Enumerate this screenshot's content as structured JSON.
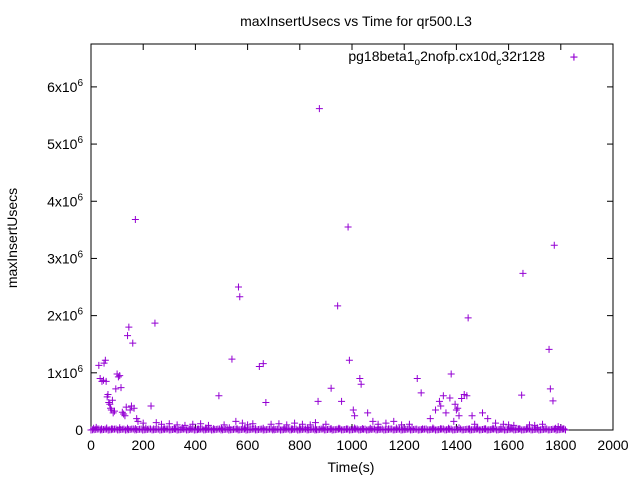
{
  "chart_data": {
    "type": "scatter",
    "title": "maxInsertUsecs vs Time for qr500.L3",
    "xlabel": "Time(s)",
    "ylabel": "maxInsertUsecs",
    "xlim": [
      0,
      2000
    ],
    "ylim": [
      0,
      6750000
    ],
    "grid": false,
    "legend_position": "top-right",
    "x_ticks": [
      {
        "value": 0,
        "label": "0"
      },
      {
        "value": 200,
        "label": "200"
      },
      {
        "value": 400,
        "label": "400"
      },
      {
        "value": 600,
        "label": "600"
      },
      {
        "value": 800,
        "label": "800"
      },
      {
        "value": 1000,
        "label": "1000"
      },
      {
        "value": 1200,
        "label": "1200"
      },
      {
        "value": 1400,
        "label": "1400"
      },
      {
        "value": 1600,
        "label": "1600"
      },
      {
        "value": 1800,
        "label": "1800"
      },
      {
        "value": 2000,
        "label": "2000"
      }
    ],
    "y_ticks": [
      {
        "value": 0,
        "base": "0",
        "exp": ""
      },
      {
        "value": 1000000,
        "base": "1x10",
        "exp": "6"
      },
      {
        "value": 2000000,
        "base": "2x10",
        "exp": "6"
      },
      {
        "value": 3000000,
        "base": "3x10",
        "exp": "6"
      },
      {
        "value": 4000000,
        "base": "4x10",
        "exp": "6"
      },
      {
        "value": 5000000,
        "base": "5x10",
        "exp": "6"
      },
      {
        "value": 6000000,
        "base": "6x10",
        "exp": "6"
      }
    ],
    "series": [
      {
        "name_parts": [
          {
            "text": "pg18beta1",
            "sub": false
          },
          {
            "text": "o",
            "sub": true
          },
          {
            "text": "2nofp.cx10d",
            "sub": false
          },
          {
            "text": "c",
            "sub": true
          },
          {
            "text": "32r128",
            "sub": false
          }
        ],
        "color": "#9400d3",
        "marker": "plus",
        "points": [
          [
            30,
            1130000
          ],
          [
            35,
            900000
          ],
          [
            42,
            850000
          ],
          [
            48,
            870000
          ],
          [
            50,
            1170000
          ],
          [
            55,
            1220000
          ],
          [
            58,
            850000
          ],
          [
            62,
            580000
          ],
          [
            65,
            620000
          ],
          [
            68,
            480000
          ],
          [
            72,
            450000
          ],
          [
            75,
            380000
          ],
          [
            78,
            350000
          ],
          [
            82,
            520000
          ],
          [
            85,
            300000
          ],
          [
            90,
            330000
          ],
          [
            95,
            720000
          ],
          [
            100,
            980000
          ],
          [
            105,
            930000
          ],
          [
            110,
            950000
          ],
          [
            115,
            740000
          ],
          [
            120,
            310000
          ],
          [
            125,
            280000
          ],
          [
            130,
            250000
          ],
          [
            135,
            400000
          ],
          [
            140,
            1650000
          ],
          [
            145,
            1800000
          ],
          [
            150,
            350000
          ],
          [
            155,
            420000
          ],
          [
            160,
            1520000
          ],
          [
            165,
            380000
          ],
          [
            170,
            3680000
          ],
          [
            175,
            200000
          ],
          [
            180,
            150000
          ],
          [
            200,
            120000
          ],
          [
            230,
            420000
          ],
          [
            245,
            1870000
          ],
          [
            250,
            130000
          ],
          [
            270,
            100000
          ],
          [
            300,
            110000
          ],
          [
            330,
            90000
          ],
          [
            360,
            80000
          ],
          [
            390,
            100000
          ],
          [
            420,
            110000
          ],
          [
            450,
            80000
          ],
          [
            490,
            600000
          ],
          [
            510,
            90000
          ],
          [
            540,
            1240000
          ],
          [
            555,
            150000
          ],
          [
            565,
            2500000
          ],
          [
            570,
            2330000
          ],
          [
            580,
            120000
          ],
          [
            600,
            90000
          ],
          [
            620,
            110000
          ],
          [
            645,
            1110000
          ],
          [
            660,
            1160000
          ],
          [
            670,
            480000
          ],
          [
            690,
            100000
          ],
          [
            720,
            110000
          ],
          [
            750,
            90000
          ],
          [
            780,
            120000
          ],
          [
            810,
            100000
          ],
          [
            840,
            90000
          ],
          [
            860,
            130000
          ],
          [
            875,
            5620000
          ],
          [
            870,
            500000
          ],
          [
            900,
            100000
          ],
          [
            920,
            730000
          ],
          [
            945,
            2170000
          ],
          [
            960,
            500000
          ],
          [
            985,
            3550000
          ],
          [
            990,
            1220000
          ],
          [
            1005,
            350000
          ],
          [
            1010,
            250000
          ],
          [
            1030,
            900000
          ],
          [
            1035,
            800000
          ],
          [
            1060,
            300000
          ],
          [
            1080,
            150000
          ],
          [
            1100,
            100000
          ],
          [
            1130,
            120000
          ],
          [
            1160,
            150000
          ],
          [
            1190,
            90000
          ],
          [
            1220,
            100000
          ],
          [
            1250,
            900000
          ],
          [
            1265,
            650000
          ],
          [
            1300,
            200000
          ],
          [
            1320,
            350000
          ],
          [
            1335,
            500000
          ],
          [
            1340,
            420000
          ],
          [
            1350,
            600000
          ],
          [
            1360,
            300000
          ],
          [
            1375,
            560000
          ],
          [
            1380,
            980000
          ],
          [
            1390,
            150000
          ],
          [
            1395,
            450000
          ],
          [
            1400,
            350000
          ],
          [
            1405,
            380000
          ],
          [
            1410,
            250000
          ],
          [
            1420,
            550000
          ],
          [
            1430,
            620000
          ],
          [
            1440,
            600000
          ],
          [
            1445,
            1960000
          ],
          [
            1460,
            250000
          ],
          [
            1470,
            100000
          ],
          [
            1500,
            300000
          ],
          [
            1520,
            200000
          ],
          [
            1550,
            120000
          ],
          [
            1580,
            100000
          ],
          [
            1600,
            90000
          ],
          [
            1620,
            80000
          ],
          [
            1650,
            610000
          ],
          [
            1655,
            2740000
          ],
          [
            1680,
            90000
          ],
          [
            1700,
            80000
          ],
          [
            1730,
            100000
          ],
          [
            1755,
            1410000
          ],
          [
            1760,
            720000
          ],
          [
            1770,
            510000
          ],
          [
            1775,
            3230000
          ],
          [
            1790,
            60000
          ],
          [
            1800,
            40000
          ],
          [
            1850,
            6520000
          ],
          [
            10,
            30000
          ],
          [
            20,
            45000
          ],
          [
            40,
            20000
          ],
          [
            60,
            35000
          ],
          [
            80,
            25000
          ],
          [
            110,
            40000
          ],
          [
            140,
            30000
          ],
          [
            170,
            25000
          ],
          [
            210,
            35000
          ],
          [
            240,
            20000
          ],
          [
            280,
            30000
          ],
          [
            320,
            25000
          ],
          [
            350,
            40000
          ],
          [
            380,
            30000
          ],
          [
            410,
            20000
          ],
          [
            440,
            35000
          ],
          [
            470,
            25000
          ],
          [
            500,
            30000
          ],
          [
            530,
            40000
          ],
          [
            560,
            20000
          ],
          [
            590,
            35000
          ],
          [
            630,
            25000
          ],
          [
            660,
            30000
          ],
          [
            700,
            20000
          ],
          [
            740,
            35000
          ],
          [
            770,
            25000
          ],
          [
            800,
            30000
          ],
          [
            830,
            40000
          ],
          [
            860,
            20000
          ],
          [
            890,
            35000
          ],
          [
            920,
            25000
          ],
          [
            950,
            30000
          ],
          [
            980,
            20000
          ],
          [
            1010,
            35000
          ],
          [
            1040,
            25000
          ],
          [
            1070,
            30000
          ],
          [
            1100,
            40000
          ],
          [
            1140,
            20000
          ],
          [
            1170,
            35000
          ],
          [
            1200,
            25000
          ],
          [
            1230,
            30000
          ],
          [
            1270,
            20000
          ],
          [
            1310,
            35000
          ],
          [
            1340,
            25000
          ],
          [
            1370,
            30000
          ],
          [
            1410,
            40000
          ],
          [
            1450,
            20000
          ],
          [
            1480,
            35000
          ],
          [
            1510,
            25000
          ],
          [
            1540,
            30000
          ],
          [
            1570,
            20000
          ],
          [
            1610,
            35000
          ],
          [
            1640,
            25000
          ],
          [
            1670,
            30000
          ],
          [
            1710,
            40000
          ],
          [
            1740,
            20000
          ],
          [
            1780,
            30000
          ],
          [
            1810,
            20000
          ]
        ]
      }
    ]
  }
}
